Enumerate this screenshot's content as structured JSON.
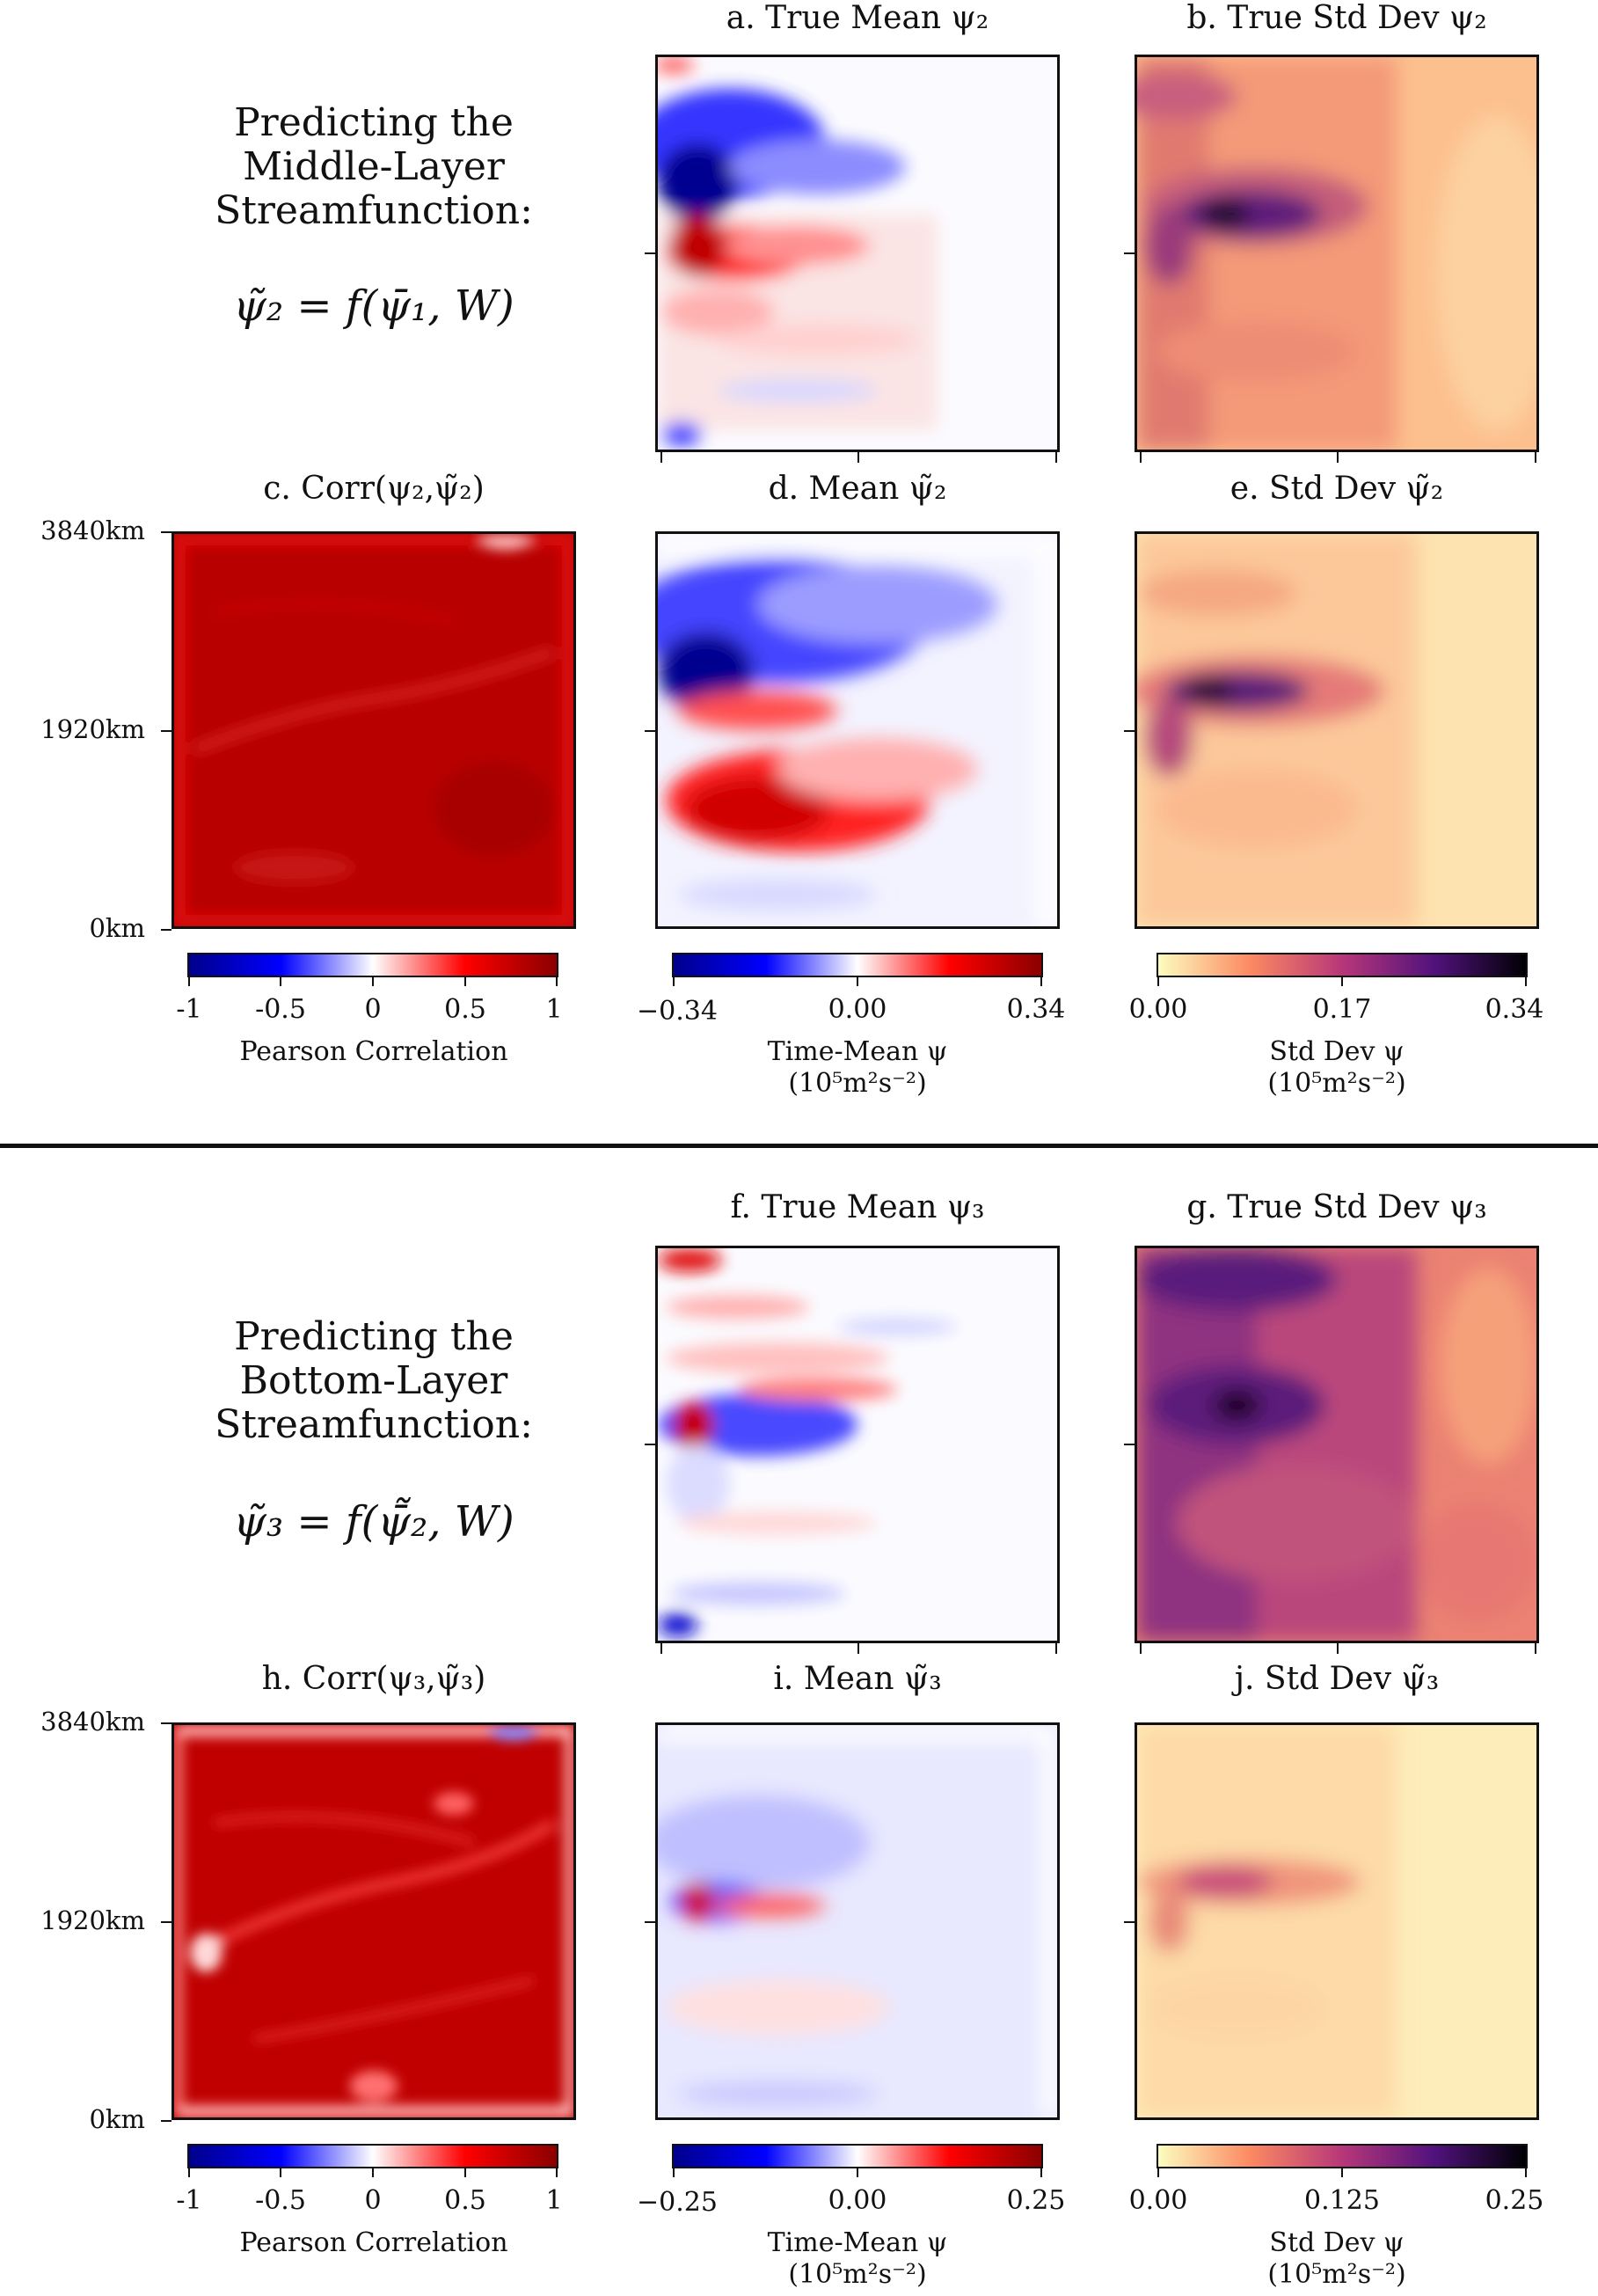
{
  "top": {
    "heading": [
      "Predicting the",
      "Middle-Layer",
      "Streamfunction:"
    ],
    "equation": "ψ̃₂ = f(ψ̄₁, W)",
    "panels": {
      "a": "a.  True Mean ψ₂",
      "b": "b.  True Std Dev ψ₂",
      "c": "c.  Corr(ψ₂,ψ̃₂)",
      "d": "d.  Mean ψ̃₂",
      "e": "e.  Std Dev ψ̃₂"
    },
    "yticks": [
      "3840km",
      "1920km",
      "0km"
    ],
    "colorbars": {
      "corr": {
        "ticks": [
          "-1",
          "-0.5",
          "0",
          "0.5",
          "1"
        ],
        "label_line1": "Pearson Correlation",
        "label_line2": ""
      },
      "mean": {
        "ticks": [
          "−0.34",
          "0.00",
          "0.34"
        ],
        "label_line1": "Time-Mean ψ",
        "label_line2": "(10⁵m²s⁻²)"
      },
      "std": {
        "ticks": [
          "0.00",
          "0.17",
          "0.34"
        ],
        "label_line1": "Std Dev ψ",
        "label_line2": "(10⁵m²s⁻²)"
      }
    }
  },
  "bottom": {
    "heading": [
      "Predicting the",
      "Bottom-Layer",
      "Streamfunction:"
    ],
    "equation": "ψ̃₃ = f(ψ̄̃₂, W)",
    "panels": {
      "f": "f.  True Mean ψ₃",
      "g": "g.  True Std Dev ψ₃",
      "h": "h.  Corr(ψ₃,ψ̃₃)",
      "i": "i.  Mean ψ̃₃",
      "j": "j.  Std Dev ψ̃₃"
    },
    "yticks": [
      "3840km",
      "1920km",
      "0km"
    ],
    "colorbars": {
      "corr": {
        "ticks": [
          "-1",
          "-0.5",
          "0",
          "0.5",
          "1"
        ],
        "label_line1": "Pearson Correlation",
        "label_line2": ""
      },
      "mean": {
        "ticks": [
          "−0.25",
          "0.00",
          "0.25"
        ],
        "label_line1": "Time-Mean ψ",
        "label_line2": "(10⁵m²s⁻²)"
      },
      "std": {
        "ticks": [
          "0.00",
          "0.125",
          "0.25"
        ],
        "label_line1": "Std Dev ψ",
        "label_line2": "(10⁵m²s⁻²)"
      }
    }
  },
  "colors": {
    "diverging": [
      "#00008b",
      "#0000ff",
      "#ffffff",
      "#ff0000",
      "#8b0000"
    ],
    "sequential_magma_r": [
      "#fcfdbf",
      "#fc8961",
      "#b73779",
      "#51127c",
      "#000004"
    ]
  },
  "chart_data": [
    {
      "type": "heatmap",
      "title": "a.  True Mean ψ₂",
      "colormap": "diverging",
      "vmin": -0.34,
      "vmax": 0.34
    },
    {
      "type": "heatmap",
      "title": "b.  True Std Dev ψ₂",
      "colormap": "magma_r",
      "vmin": 0.0,
      "vmax": 0.34
    },
    {
      "type": "heatmap",
      "title": "c.  Corr(ψ₂,ψ̃₂)",
      "colormap": "diverging",
      "vmin": -1,
      "vmax": 1,
      "ylabel_ticks": [
        "0km",
        "1920km",
        "3840km"
      ]
    },
    {
      "type": "heatmap",
      "title": "d.  Mean ψ̃₂",
      "colormap": "diverging",
      "vmin": -0.34,
      "vmax": 0.34
    },
    {
      "type": "heatmap",
      "title": "e.  Std Dev ψ̃₂",
      "colormap": "magma_r",
      "vmin": 0.0,
      "vmax": 0.34
    },
    {
      "type": "heatmap",
      "title": "f.  True Mean ψ₃",
      "colormap": "diverging",
      "vmin": -0.25,
      "vmax": 0.25
    },
    {
      "type": "heatmap",
      "title": "g.  True Std Dev ψ₃",
      "colormap": "magma_r",
      "vmin": 0.0,
      "vmax": 0.25
    },
    {
      "type": "heatmap",
      "title": "h.  Corr(ψ₃,ψ̃₃)",
      "colormap": "diverging",
      "vmin": -1,
      "vmax": 1,
      "ylabel_ticks": [
        "0km",
        "1920km",
        "3840km"
      ]
    },
    {
      "type": "heatmap",
      "title": "i.  Mean ψ̃₃",
      "colormap": "diverging",
      "vmin": -0.25,
      "vmax": 0.25
    },
    {
      "type": "heatmap",
      "title": "j.  Std Dev ψ̃₃",
      "colormap": "magma_r",
      "vmin": 0.0,
      "vmax": 0.25
    }
  ]
}
